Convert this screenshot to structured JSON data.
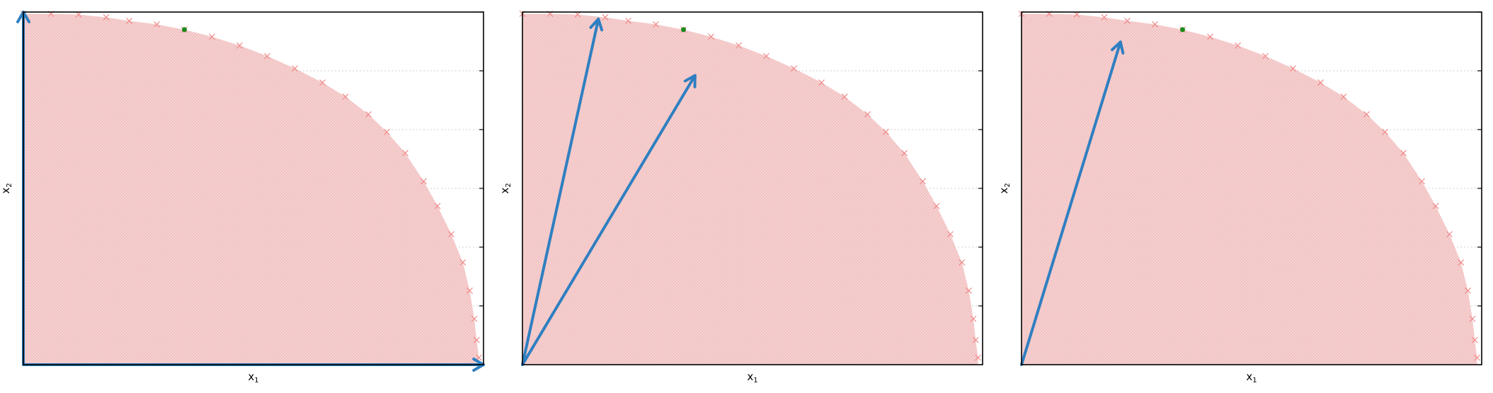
{
  "chart_data": [
    {
      "type": "scatter",
      "title": "",
      "xlabel": "x",
      "xlabel_sub": "1",
      "ylabel": "x",
      "ylabel_sub": "2",
      "xlim": [
        0,
        1
      ],
      "ylim": [
        0,
        1
      ],
      "grid": "horizontal dotted",
      "legend": "none",
      "region": {
        "name": "",
        "color": "#f4c7c7",
        "hatch": true
      },
      "pareto_points": [
        [
          0.0,
          0.995
        ],
        [
          0.06,
          0.995
        ],
        [
          0.12,
          0.993
        ],
        [
          0.18,
          0.985
        ],
        [
          0.23,
          0.975
        ],
        [
          0.29,
          0.965
        ],
        [
          0.35,
          0.95
        ],
        [
          0.41,
          0.93
        ],
        [
          0.47,
          0.905
        ],
        [
          0.53,
          0.875
        ],
        [
          0.59,
          0.84
        ],
        [
          0.65,
          0.8
        ],
        [
          0.7,
          0.76
        ],
        [
          0.75,
          0.71
        ],
        [
          0.79,
          0.66
        ],
        [
          0.83,
          0.6
        ],
        [
          0.87,
          0.52
        ],
        [
          0.9,
          0.45
        ],
        [
          0.93,
          0.37
        ],
        [
          0.955,
          0.29
        ],
        [
          0.97,
          0.21
        ],
        [
          0.98,
          0.13
        ],
        [
          0.985,
          0.07
        ],
        [
          0.99,
          0.02
        ]
      ],
      "highlight_point": {
        "x": 0.35,
        "y": 0.95,
        "color": "#1a8a1a"
      },
      "arrows": [
        {
          "x": 0.0,
          "y": 1.0,
          "color": "#2f7fc1"
        },
        {
          "x": 1.0,
          "y": 0.0,
          "color": "#2f7fc1"
        }
      ]
    },
    {
      "type": "scatter",
      "title": "",
      "xlabel": "x",
      "xlabel_sub": "1",
      "ylabel": "x",
      "ylabel_sub": "2",
      "xlim": [
        0,
        1
      ],
      "ylim": [
        0,
        1
      ],
      "grid": "horizontal dotted",
      "legend": "none",
      "region": {
        "name": "",
        "color": "#f4c7c7",
        "hatch": true
      },
      "pareto_points": [
        [
          0.0,
          0.995
        ],
        [
          0.06,
          0.995
        ],
        [
          0.12,
          0.993
        ],
        [
          0.18,
          0.985
        ],
        [
          0.23,
          0.975
        ],
        [
          0.29,
          0.965
        ],
        [
          0.35,
          0.95
        ],
        [
          0.41,
          0.93
        ],
        [
          0.47,
          0.905
        ],
        [
          0.53,
          0.875
        ],
        [
          0.59,
          0.84
        ],
        [
          0.65,
          0.8
        ],
        [
          0.7,
          0.76
        ],
        [
          0.75,
          0.71
        ],
        [
          0.79,
          0.66
        ],
        [
          0.83,
          0.6
        ],
        [
          0.87,
          0.52
        ],
        [
          0.9,
          0.45
        ],
        [
          0.93,
          0.37
        ],
        [
          0.955,
          0.29
        ],
        [
          0.97,
          0.21
        ],
        [
          0.98,
          0.13
        ],
        [
          0.985,
          0.07
        ],
        [
          0.99,
          0.02
        ]
      ],
      "highlight_point": {
        "x": 0.35,
        "y": 0.95,
        "color": "#1a8a1a"
      },
      "arrows": [
        {
          "x": 0.165,
          "y": 0.98,
          "color": "#2f7fc1"
        },
        {
          "x": 0.375,
          "y": 0.82,
          "color": "#2f7fc1"
        }
      ]
    },
    {
      "type": "scatter",
      "title": "",
      "xlabel": "x",
      "xlabel_sub": "1",
      "ylabel": "x",
      "ylabel_sub": "2",
      "xlim": [
        0,
        1
      ],
      "ylim": [
        0,
        1
      ],
      "grid": "horizontal dotted",
      "legend": "none",
      "region": {
        "name": "",
        "color": "#f4c7c7",
        "hatch": true
      },
      "pareto_points": [
        [
          0.0,
          0.995
        ],
        [
          0.06,
          0.995
        ],
        [
          0.12,
          0.993
        ],
        [
          0.18,
          0.985
        ],
        [
          0.23,
          0.975
        ],
        [
          0.29,
          0.965
        ],
        [
          0.35,
          0.95
        ],
        [
          0.41,
          0.93
        ],
        [
          0.47,
          0.905
        ],
        [
          0.53,
          0.875
        ],
        [
          0.59,
          0.84
        ],
        [
          0.65,
          0.8
        ],
        [
          0.7,
          0.76
        ],
        [
          0.75,
          0.71
        ],
        [
          0.79,
          0.66
        ],
        [
          0.83,
          0.6
        ],
        [
          0.87,
          0.52
        ],
        [
          0.9,
          0.45
        ],
        [
          0.93,
          0.37
        ],
        [
          0.955,
          0.29
        ],
        [
          0.97,
          0.21
        ],
        [
          0.98,
          0.13
        ],
        [
          0.985,
          0.07
        ],
        [
          0.99,
          0.02
        ]
      ],
      "highlight_point": {
        "x": 0.35,
        "y": 0.95,
        "color": "#1a8a1a"
      },
      "arrows": [
        {
          "x": 0.215,
          "y": 0.915,
          "color": "#2f7fc1"
        }
      ]
    }
  ]
}
